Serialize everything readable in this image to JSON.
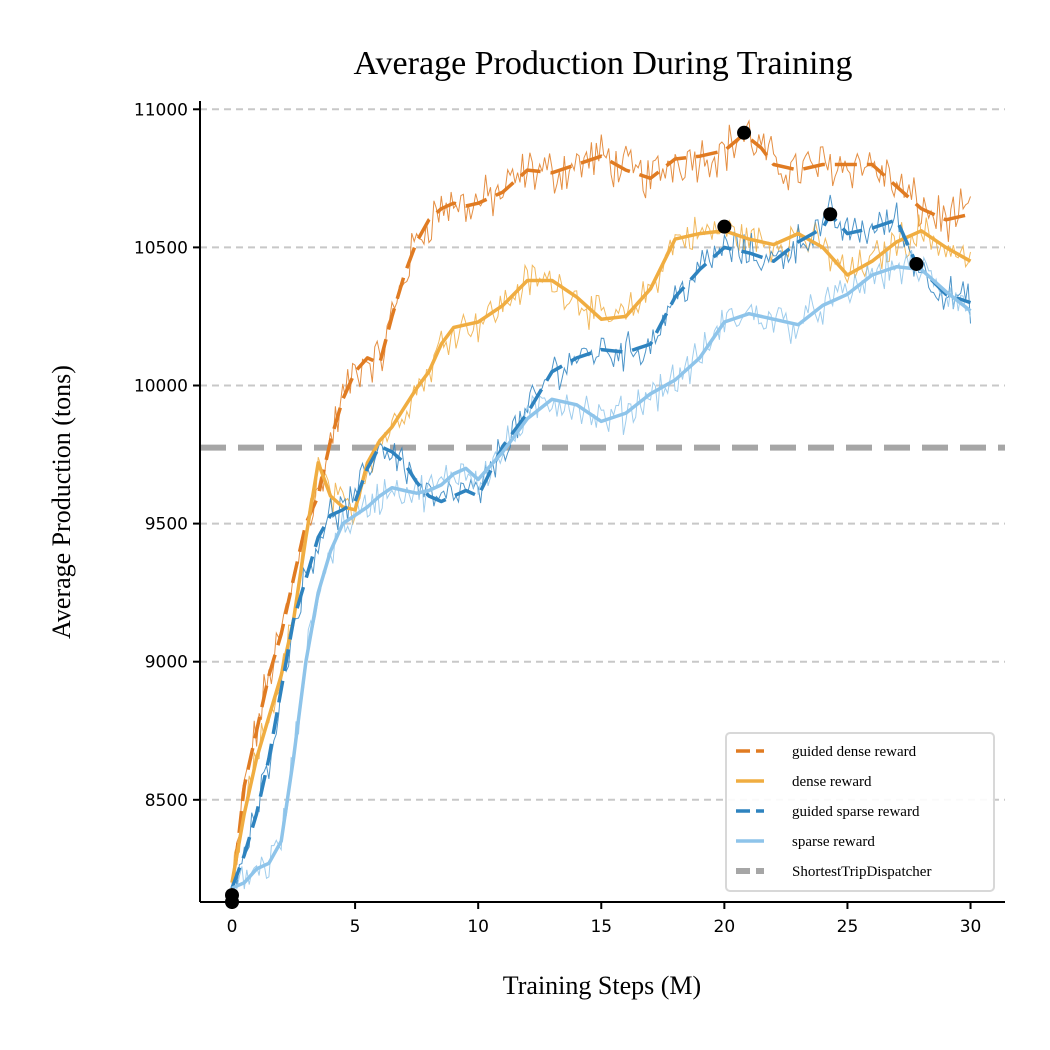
{
  "chart_data": {
    "type": "line",
    "title": "Average Production During Training",
    "xlabel": "Training Steps (M)",
    "ylabel": "Average Production (tons)",
    "xlim": [
      -1.3,
      31.4
    ],
    "ylim": [
      8130,
      11030
    ],
    "xticks": [
      0,
      5,
      10,
      15,
      20,
      25,
      30
    ],
    "yticks": [
      8500,
      9000,
      9500,
      10000,
      10500,
      11000
    ],
    "grid": "y-dashed",
    "legend_position": "lower-right",
    "baseline": {
      "name": "ShortestTripDispatcher",
      "value": 9775,
      "color": "#a6a6a6"
    },
    "series": [
      {
        "name": "guided dense reward",
        "color": "#e07b22",
        "style": "dashed",
        "x": [
          0,
          0.5,
          1,
          1.5,
          2,
          2.5,
          3,
          3.5,
          4,
          4.5,
          5,
          5.5,
          6,
          6.5,
          7,
          7.5,
          8,
          8.5,
          9,
          9.5,
          10,
          11,
          12,
          13,
          14,
          15,
          16,
          17,
          18,
          19,
          20,
          20.8,
          21.5,
          22,
          23,
          24,
          25,
          26,
          27,
          28,
          29,
          30
        ],
        "values": [
          8150,
          8550,
          8750,
          8950,
          9100,
          9300,
          9500,
          9600,
          9800,
          9950,
          10050,
          10100,
          10080,
          10250,
          10400,
          10520,
          10600,
          10640,
          10660,
          10650,
          10660,
          10700,
          10780,
          10770,
          10800,
          10830,
          10780,
          10750,
          10820,
          10830,
          10850,
          10910,
          10860,
          10800,
          10780,
          10800,
          10800,
          10800,
          10720,
          10640,
          10600,
          10620
        ]
      },
      {
        "name": "dense reward",
        "color": "#f0ad41",
        "style": "solid",
        "x": [
          0,
          0.5,
          1,
          1.5,
          2,
          2.5,
          3,
          3.5,
          4,
          4.5,
          5,
          5.5,
          6,
          6.5,
          7,
          7.5,
          8,
          8.5,
          9,
          9.5,
          10,
          11,
          12,
          13,
          14,
          15,
          16,
          17,
          18,
          19,
          20,
          21,
          22,
          23,
          24,
          25,
          26,
          27,
          28,
          29,
          30
        ],
        "values": [
          8200,
          8450,
          8650,
          8800,
          8950,
          9150,
          9450,
          9720,
          9600,
          9560,
          9550,
          9720,
          9800,
          9850,
          9920,
          9990,
          10050,
          10150,
          10210,
          10220,
          10230,
          10290,
          10380,
          10380,
          10320,
          10240,
          10250,
          10350,
          10530,
          10550,
          10560,
          10530,
          10510,
          10550,
          10500,
          10400,
          10450,
          10520,
          10560,
          10500,
          10450
        ]
      },
      {
        "name": "guided sparse reward",
        "color": "#2e83bf",
        "style": "dashed",
        "x": [
          0,
          0.5,
          1,
          1.5,
          2,
          2.5,
          3,
          3.5,
          4,
          4.5,
          5,
          5.5,
          6,
          6.5,
          7,
          7.5,
          8,
          8.5,
          9,
          9.5,
          10,
          11,
          12,
          13,
          14,
          15,
          16,
          17,
          18,
          19,
          20,
          21,
          22,
          23,
          24,
          24.3,
          25,
          26,
          27,
          27.8,
          28,
          29,
          30
        ],
        "values": [
          8180,
          8300,
          8450,
          8650,
          8900,
          9150,
          9300,
          9450,
          9530,
          9550,
          9580,
          9700,
          9780,
          9760,
          9720,
          9650,
          9600,
          9580,
          9600,
          9620,
          9600,
          9780,
          9900,
          10050,
          10100,
          10130,
          10120,
          10150,
          10320,
          10420,
          10500,
          10480,
          10450,
          10520,
          10570,
          10620,
          10550,
          10570,
          10600,
          10440,
          10420,
          10330,
          10300
        ]
      },
      {
        "name": "sparse reward",
        "color": "#8ec4ea",
        "style": "solid",
        "x": [
          0,
          0.5,
          1,
          1.5,
          2,
          2.5,
          3,
          3.5,
          4,
          4.5,
          5,
          5.5,
          6,
          6.5,
          7,
          7.5,
          8,
          8.5,
          9,
          9.5,
          10,
          11,
          12,
          13,
          14,
          15,
          16,
          17,
          18,
          19,
          20,
          21,
          22,
          23,
          24,
          25,
          26,
          27,
          28,
          29,
          30
        ],
        "values": [
          8180,
          8200,
          8250,
          8270,
          8350,
          8650,
          9000,
          9250,
          9400,
          9500,
          9530,
          9560,
          9600,
          9630,
          9620,
          9610,
          9620,
          9640,
          9680,
          9700,
          9660,
          9760,
          9880,
          9950,
          9930,
          9870,
          9900,
          9970,
          10020,
          10100,
          10230,
          10260,
          10240,
          10220,
          10290,
          10330,
          10400,
          10430,
          10420,
          10340,
          10270
        ]
      }
    ],
    "markers": [
      {
        "x": 0,
        "y": 8155
      },
      {
        "x": 0,
        "y": 8130
      },
      {
        "x": 20.8,
        "y": 10915
      },
      {
        "x": 20.0,
        "y": 10575
      },
      {
        "x": 24.3,
        "y": 10620
      },
      {
        "x": 27.8,
        "y": 10440
      }
    ]
  }
}
